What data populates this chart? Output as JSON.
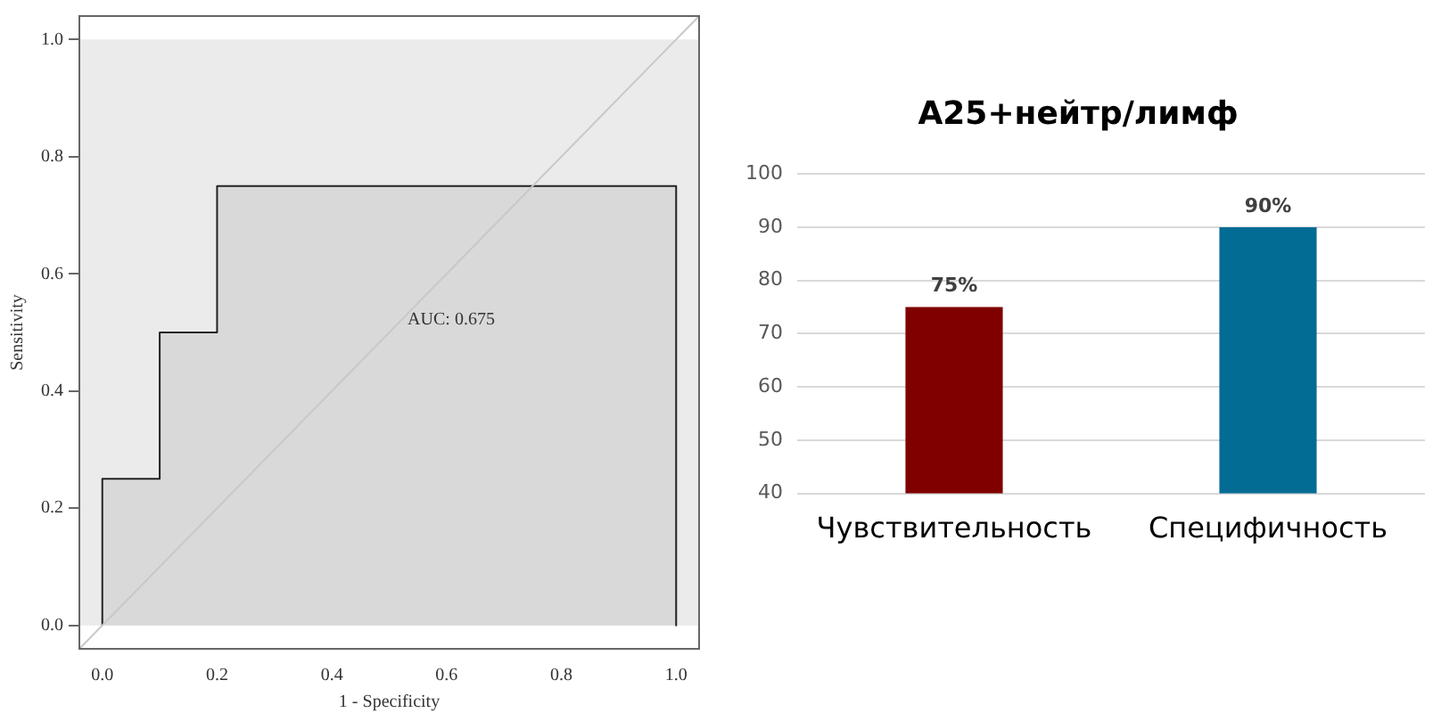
{
  "chart_data": [
    {
      "type": "line",
      "xlabel": "1 - Specificity",
      "ylabel": "Sensitivity",
      "xlim": [
        -0.04,
        1.04
      ],
      "ylim": [
        -0.04,
        1.04
      ],
      "xticks": [
        {
          "value": 0,
          "label": "0.0"
        },
        {
          "value": 0.2,
          "label": "0.2"
        },
        {
          "value": 0.4,
          "label": "0.4"
        },
        {
          "value": 0.6,
          "label": "0.6"
        },
        {
          "value": 0.8,
          "label": "0.8"
        },
        {
          "value": 1,
          "label": "1.0"
        }
      ],
      "yticks": [
        {
          "value": 0,
          "label": "0.0"
        },
        {
          "value": 0.2,
          "label": "0.2"
        },
        {
          "value": 0.4,
          "label": "0.4"
        },
        {
          "value": 0.6,
          "label": "0.6"
        },
        {
          "value": 0.8,
          "label": "0.8"
        },
        {
          "value": 1,
          "label": "1.0"
        }
      ],
      "grid": false,
      "legend": false,
      "annotations": [
        "AUC: 0.675"
      ],
      "bands": [
        {
          "axis": "y",
          "from": 0,
          "to": 1,
          "color": "#ebebeb"
        }
      ],
      "series": [
        {
          "type": "area",
          "color": "#d9d9d9",
          "x": [
            0,
            0,
            0.1,
            0.1,
            0.2,
            0.2,
            1,
            1
          ],
          "values": [
            0,
            0.25,
            0.25,
            0.5,
            0.5,
            0.75,
            0.75,
            0
          ]
        },
        {
          "type": "line",
          "color": "#c8c8c8",
          "x": [
            -0.04,
            1.04
          ],
          "values": [
            -0.04,
            1.04
          ]
        }
      ]
    },
    {
      "type": "bar",
      "title": "А25+нейтр/лимф",
      "categories": [
        "Чувствительность",
        "Специфичность"
      ],
      "values": [
        75,
        90
      ],
      "colors": [
        "#800000",
        "#026c94"
      ],
      "value_labels": [
        "75%",
        "90%"
      ],
      "ylim": [
        40,
        100
      ],
      "yticks": [
        40,
        50,
        60,
        70,
        80,
        90,
        100
      ],
      "grid": "y",
      "legend": false
    }
  ]
}
